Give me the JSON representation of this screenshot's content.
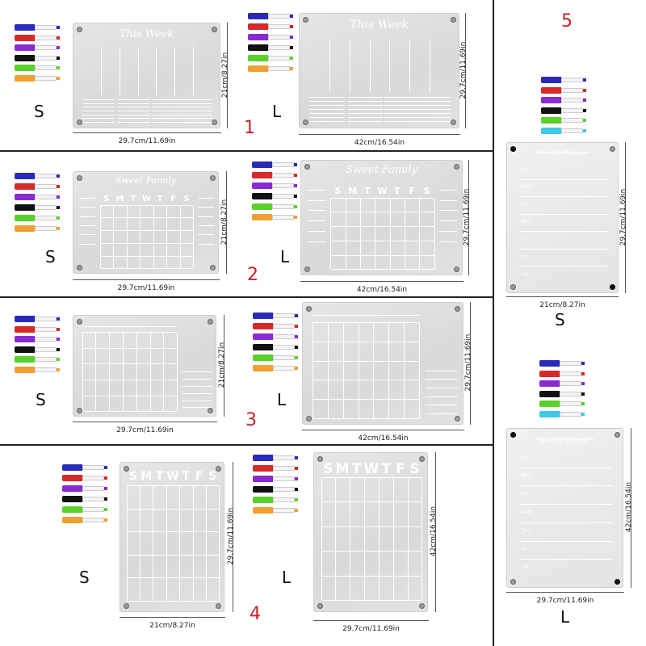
{
  "colors": {
    "accent_number": "#c8242a",
    "divider": "#222222",
    "marker_caps": [
      "#2a2ab8",
      "#d42a2a",
      "#8a2ad0",
      "#111111",
      "#5ad02a",
      "#f0a030"
    ],
    "marker_caps_set5": [
      "#2a2ab8",
      "#d42a2a",
      "#8a2ad0",
      "#111111",
      "#5ad02a",
      "#40c8e8"
    ]
  },
  "sections": [
    {
      "number": "1",
      "small": {
        "size": "S",
        "width": "29.7cm/11.69in",
        "height": "21cm/8.27in",
        "title": "This Week"
      },
      "large": {
        "size": "L",
        "width": "42cm/16.54in",
        "height": "29.7cm/11.69in",
        "title": "This Week"
      }
    },
    {
      "number": "2",
      "small": {
        "size": "S",
        "width": "29.7cm/11.69in",
        "height": "21cm/8.27in",
        "title": "Sweet Family"
      },
      "large": {
        "size": "L",
        "width": "42cm/16.54in",
        "height": "29.7cm/11.69in",
        "title": "Sweet Family"
      }
    },
    {
      "number": "3",
      "small": {
        "size": "S",
        "width": "29.7cm/11.69in",
        "height": "21cm/8.27in"
      },
      "large": {
        "size": "L",
        "width": "42cm/16.54in",
        "height": "29.7cm/11.69in"
      }
    },
    {
      "number": "4",
      "small": {
        "size": "S",
        "width": "21cm/8.27in",
        "height": "29.7cm/11.69in"
      },
      "large": {
        "size": "L",
        "width": "29.7cm/11.69in",
        "height": "42cm/16.54in"
      }
    },
    {
      "number": "5",
      "small": {
        "size": "S",
        "width": "21cm/8.27in",
        "height": "29.7cm/11.69in",
        "title": "Weekly Planner"
      },
      "large": {
        "size": "L",
        "width": "29.7cm/11.69in",
        "height": "42cm/16.54in",
        "title": "Weekly Planner"
      }
    }
  ],
  "weekday_letters": [
    "S",
    "M",
    "T",
    "W",
    "T",
    "F",
    "S"
  ],
  "planner_days": [
    "Sun",
    "Mon",
    "Tue",
    "Wed",
    "Thu",
    "Fri",
    "Sat"
  ]
}
